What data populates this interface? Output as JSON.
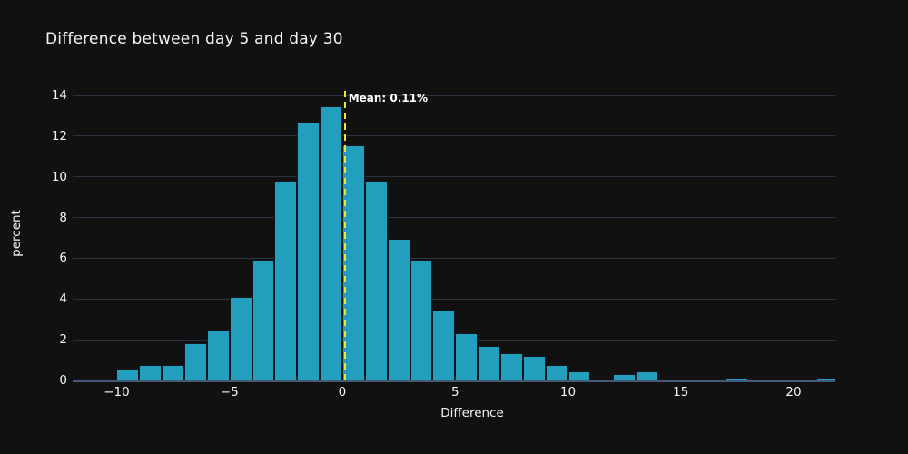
{
  "figure": {
    "title": "Difference between day 5 and day 30",
    "background_color": "#111111",
    "text_color": "#f2f5fa"
  },
  "chart_data": {
    "type": "bar",
    "subtype": "histogram",
    "title": "Difference between day 5 and day 30",
    "xlabel": "Difference",
    "ylabel": "percent",
    "grid": true,
    "legend": "none",
    "bin_start": -12,
    "bin_width": 1,
    "bin_left_edges": [
      -12,
      -11,
      -10,
      -9,
      -8,
      -7,
      -6,
      -5,
      -4,
      -3,
      -2,
      -1,
      0,
      1,
      2,
      3,
      4,
      5,
      6,
      7,
      8,
      9,
      10,
      11,
      12,
      13,
      14,
      15,
      16,
      17,
      18,
      19,
      20,
      21
    ],
    "values": [
      0.1,
      0.1,
      0.6,
      0.75,
      0.75,
      1.85,
      2.5,
      4.1,
      5.95,
      9.8,
      12.65,
      13.45,
      11.55,
      9.8,
      6.95,
      5.95,
      3.45,
      2.3,
      1.7,
      1.35,
      1.2,
      0.75,
      0.45,
      0,
      0.3,
      0.45,
      0,
      0,
      0,
      0.15,
      0,
      0,
      0,
      0.15
    ],
    "xlim": [
      -11.95,
      21.85
    ],
    "ylim": [
      0,
      14.45
    ],
    "x_tick_values": [
      -10,
      -5,
      0,
      5,
      10,
      15,
      20
    ],
    "x_tick_labels": [
      "−10",
      "−5",
      "0",
      "5",
      "10",
      "15",
      "20"
    ],
    "y_tick_values": [
      0,
      2,
      4,
      6,
      8,
      10,
      12,
      14
    ],
    "y_tick_labels": [
      "0",
      "2",
      "4",
      "6",
      "8",
      "10",
      "12",
      "14"
    ],
    "bar_color": "#219fbd",
    "bar_edge_color": "#10161c",
    "grid_color": "#283442",
    "zero_line_color": "#45597a",
    "mean_line": {
      "x": 0.11,
      "label": "Mean: 0.11%",
      "color": "#ece72c"
    }
  }
}
